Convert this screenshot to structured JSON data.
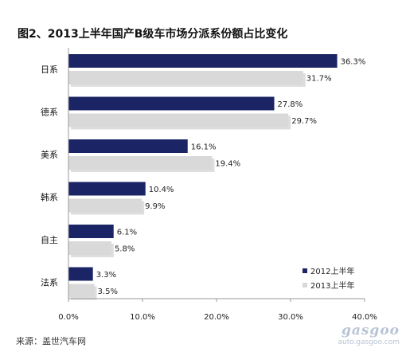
{
  "chart_data": {
    "type": "bar",
    "orientation": "horizontal",
    "title": "图2、2013上半年国产B级车市场分派系份额占比变化",
    "categories": [
      "日系",
      "德系",
      "美系",
      "韩系",
      "自主",
      "法系"
    ],
    "series": [
      {
        "name": "2012上半年",
        "color": "#1b2464",
        "values": [
          36.3,
          27.8,
          16.1,
          10.4,
          6.1,
          3.3
        ],
        "labels": [
          "36.3%",
          "27.8%",
          "16.1%",
          "10.4%",
          "6.1%",
          "3.3%"
        ]
      },
      {
        "name": "2013上半年",
        "color": "#d9d9d9",
        "values": [
          31.7,
          29.7,
          19.4,
          9.9,
          5.8,
          3.5
        ],
        "labels": [
          "31.7%",
          "29.7%",
          "19.4%",
          "9.9%",
          "5.8%",
          "3.5%"
        ]
      }
    ],
    "xlim": [
      0,
      40
    ],
    "xticks": [
      0,
      10,
      20,
      30,
      40
    ],
    "xtick_labels": [
      "0.0%",
      "10.0%",
      "20.0%",
      "30.0%",
      "40.0%"
    ],
    "legend_position": "bottom-right",
    "grid": false
  },
  "source": "来源：盖世汽车网",
  "watermark": {
    "logo": "gasgoo",
    "url": "auto.gasgoo.com"
  }
}
